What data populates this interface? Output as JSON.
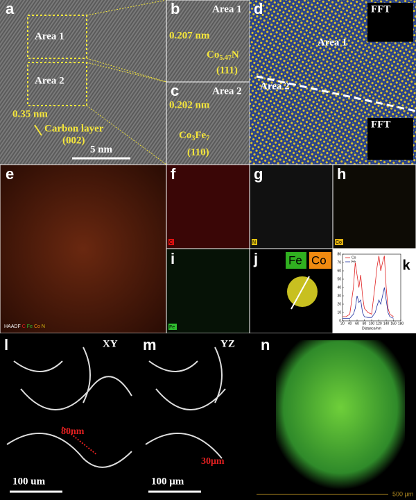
{
  "panels": {
    "a": {
      "label": "a",
      "area1": "Area 1",
      "area2": "Area 2",
      "spacing": "0.35 nm",
      "layer": "Carbon layer",
      "plane": "(002)",
      "scale": "5 nm"
    },
    "b": {
      "label": "b",
      "area": "Area 1",
      "spacing": "0.207 nm",
      "formula": [
        "Co",
        "5.47",
        "N"
      ],
      "plane": "(111)"
    },
    "c": {
      "label": "c",
      "area": "Area 2",
      "spacing": "0.202 nm",
      "formula": [
        "Co",
        "3",
        "Fe",
        "7"
      ],
      "plane": "(110)"
    },
    "d": {
      "label": "d",
      "fft1": "FFT",
      "area1": "Area 1",
      "area2": "Area 2",
      "fft2": "FFT"
    },
    "e": {
      "label": "e",
      "legend": [
        "HAADF",
        "C",
        "Fe",
        "Co",
        "N"
      ]
    },
    "f": {
      "label": "f",
      "element": "C"
    },
    "g": {
      "label": "g",
      "element": "N"
    },
    "h": {
      "label": "h",
      "element": "Co"
    },
    "i": {
      "label": "i",
      "element": "Fe"
    },
    "j": {
      "label": "j",
      "element1": "Fe",
      "element2": "Co"
    },
    "k": {
      "label": "k"
    },
    "l": {
      "label": "l",
      "plane": "XY",
      "size": "80nm",
      "scale": "100 um"
    },
    "m": {
      "label": "m",
      "plane": "YZ",
      "size": "30μm",
      "scale": "100 μm"
    },
    "n": {
      "label": "n",
      "scale": "500 μm"
    }
  },
  "chart_data": {
    "type": "line",
    "x_label": "Distance/nm",
    "x": [
      20,
      30,
      40,
      50,
      55,
      60,
      65,
      70,
      75,
      80,
      90,
      100,
      110,
      115,
      120,
      125,
      130,
      135,
      140,
      145,
      150,
      160
    ],
    "series": [
      {
        "name": "Co",
        "color": "#e02020",
        "values": [
          5,
          5,
          8,
          40,
          70,
          55,
          40,
          55,
          30,
          15,
          10,
          8,
          45,
          65,
          78,
          60,
          70,
          78,
          40,
          15,
          8,
          5
        ]
      },
      {
        "name": "Fe",
        "color": "#2030a0",
        "values": [
          3,
          3,
          3,
          8,
          15,
          30,
          22,
          25,
          10,
          5,
          4,
          4,
          10,
          18,
          25,
          20,
          30,
          40,
          25,
          10,
          5,
          3
        ]
      }
    ],
    "xlim": [
      20,
      180
    ],
    "xticks": [
      20,
      40,
      60,
      80,
      100,
      120,
      140,
      160,
      180
    ],
    "ylim": [
      0,
      80
    ],
    "yticks": [
      0,
      10,
      20,
      30,
      40,
      50,
      60,
      70,
      80
    ],
    "legend": "upper left"
  }
}
